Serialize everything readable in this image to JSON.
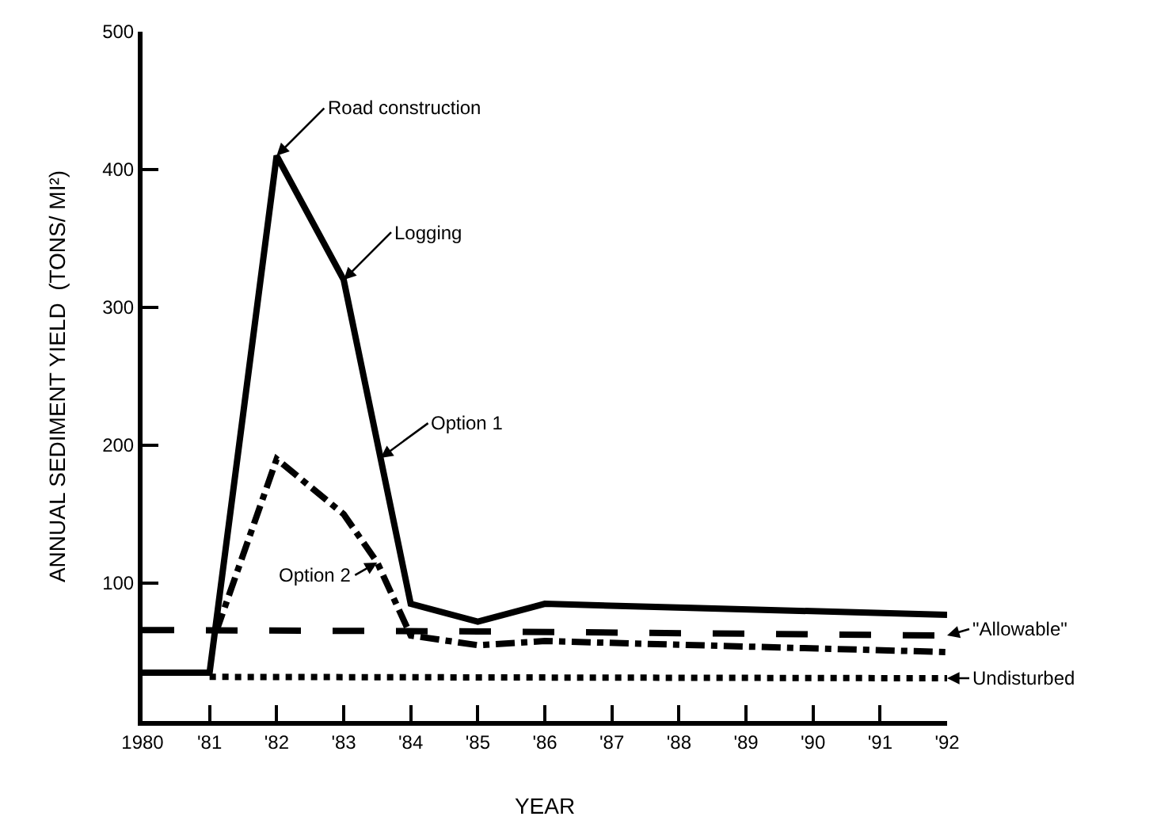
{
  "chart_data": {
    "type": "line",
    "xlabel": "YEAR",
    "ylabel": "ANNUAL SEDIMENT YIELD  (TONS/ MI²)",
    "xlim": [
      1980,
      1992
    ],
    "xticks": [
      1980,
      {
        "value": 1981,
        "label": "'81"
      },
      {
        "value": 1982,
        "label": "'82"
      },
      {
        "value": 1983,
        "label": "'83"
      },
      {
        "value": 1984,
        "label": "'84"
      },
      {
        "value": 1985,
        "label": "'85"
      },
      {
        "value": 1986,
        "label": "'86"
      },
      {
        "value": 1987,
        "label": "'87"
      },
      {
        "value": 1988,
        "label": "'88"
      },
      {
        "value": 1989,
        "label": "'89"
      },
      {
        "value": 1990,
        "label": "'90"
      },
      {
        "value": 1991,
        "label": "'91"
      },
      {
        "value": 1992,
        "label": "'92"
      }
    ],
    "ylim": [
      0,
      500
    ],
    "yticks": [
      100,
      200,
      300,
      400,
      500
    ],
    "grid": false,
    "legend": "right",
    "marker": "none",
    "series": [
      {
        "name": "Option 1",
        "color": "#000000",
        "line_style": "solid",
        "x": [
          1980,
          1981,
          1982,
          1983,
          1984,
          1985,
          1986,
          1992
        ],
        "values": [
          35,
          35,
          410,
          320,
          85,
          72,
          85,
          77
        ]
      },
      {
        "name": "Option 2",
        "color": "#000000",
        "line_style": "dashdot",
        "x": [
          1981.1,
          1982,
          1983,
          1983.5,
          1984,
          1985,
          1986,
          1992
        ],
        "values": [
          65,
          190,
          150,
          115,
          62,
          55,
          58,
          50
        ]
      },
      {
        "name": "\"Allowable\"",
        "color": "#000000",
        "line_style": "dashed",
        "x": [
          1980,
          1985,
          1992
        ],
        "values": [
          66,
          65,
          62
        ]
      },
      {
        "name": "Undisturbed",
        "color": "#000000",
        "line_style": "dotted",
        "x": [
          1981,
          1992
        ],
        "values": [
          32,
          31
        ]
      }
    ],
    "annotations": [
      {
        "text": "Road construction",
        "x": 1982,
        "y": 410
      },
      {
        "text": "Logging",
        "x": 1983,
        "y": 320
      }
    ]
  }
}
